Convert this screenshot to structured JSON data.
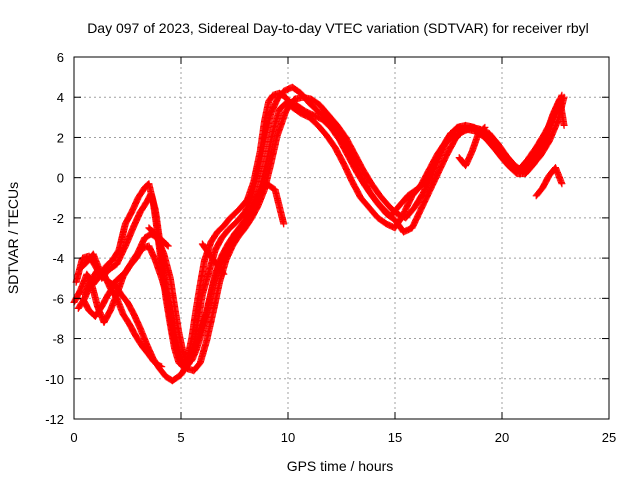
{
  "chart_data": {
    "type": "scatter",
    "title": "Day 097 of 2023, Sidereal Day-to-day VTEC variation (SDTVAR) for receiver rbyl",
    "xlabel": "GPS time / hours",
    "ylabel": "SDTVAR / TECUs",
    "xlim": [
      0,
      25
    ],
    "ylim": [
      -12,
      6
    ],
    "xticks": [
      0,
      5,
      10,
      15,
      20,
      25
    ],
    "yticks": [
      -12,
      -10,
      -8,
      -6,
      -4,
      -2,
      0,
      2,
      4,
      6
    ],
    "xtick_labels": [
      "0",
      "5",
      "10",
      "15",
      "20",
      "25"
    ],
    "ytick_labels": [
      "-12",
      "-10",
      "-8",
      "-6",
      "-4",
      "-2",
      "0",
      "2",
      "4",
      "6"
    ],
    "grid": true,
    "legend": "none",
    "marker": "plus",
    "color": "#ff0000",
    "series": [
      {
        "x": [
          0.0,
          0.3,
          0.6,
          0.9,
          1.2,
          1.5,
          1.8,
          2.1,
          2.4,
          2.7,
          3.0,
          3.3,
          3.5,
          3.7,
          3.9,
          4.1,
          4.3,
          4.5,
          4.7,
          4.9,
          5.1,
          5.3,
          5.5,
          5.7,
          5.9,
          6.1,
          6.4,
          6.7,
          7.0,
          7.3,
          7.7,
          8.1,
          8.4,
          8.7,
          8.9,
          9.1,
          9.3,
          9.6,
          9.9,
          10.2,
          10.6,
          11.0,
          11.4,
          11.8,
          12.2,
          12.6,
          13.0,
          13.4,
          13.8,
          14.2,
          14.6,
          15.0,
          15.4,
          15.8,
          16.2,
          16.6,
          17.0,
          17.4,
          17.8,
          18.2,
          18.6,
          19.0,
          19.4,
          19.8,
          20.2,
          20.6,
          21.0,
          21.4,
          21.8,
          22.1,
          22.4,
          22.7,
          22.9
        ],
        "y": [
          -6.2,
          -5.6,
          -4.8,
          -5.3,
          -4.9,
          -4.4,
          -4.1,
          -3.6,
          -2.3,
          -1.7,
          -1.0,
          -0.5,
          -0.3,
          -1.2,
          -2.7,
          -4.4,
          -6.0,
          -7.3,
          -8.5,
          -9.2,
          -9.4,
          -9.0,
          -8.0,
          -6.6,
          -5.3,
          -4.1,
          -3.2,
          -2.7,
          -2.4,
          -2.0,
          -1.6,
          -1.1,
          -0.2,
          1.3,
          2.8,
          3.8,
          4.1,
          4.2,
          4.0,
          3.5,
          3.2,
          3.0,
          2.6,
          2.1,
          1.5,
          0.7,
          -0.2,
          -1.0,
          -1.5,
          -2.0,
          -2.3,
          -2.5,
          -1.8,
          -0.9,
          -0.4,
          0.4,
          1.2,
          1.8,
          2.1,
          2.3,
          2.5,
          2.3,
          2.0,
          1.4,
          0.8,
          0.4,
          0.5,
          1.0,
          1.5,
          2.3,
          3.2,
          3.9,
          2.6
        ]
      },
      {
        "x": [
          0.1,
          0.4,
          0.7,
          1.0,
          1.3,
          1.6,
          2.0,
          2.4,
          2.8,
          3.1,
          3.4,
          3.6,
          3.8,
          4.0,
          4.2,
          4.4,
          4.6,
          4.8,
          5.0,
          5.2,
          5.4,
          5.6,
          5.8,
          6.0,
          6.3,
          6.6,
          6.9,
          7.2,
          7.6,
          8.0,
          8.3,
          8.6,
          8.9,
          9.2,
          9.5,
          9.8,
          10.2,
          10.6,
          11.0,
          11.4,
          11.8,
          12.2,
          12.6,
          13.0,
          13.4,
          13.8,
          14.2,
          14.6,
          15.0,
          15.4,
          15.8,
          16.2,
          16.6,
          17.0,
          17.4,
          17.8,
          18.2,
          18.6,
          19.0,
          19.4,
          19.8,
          20.2,
          20.6,
          21.0,
          21.4,
          21.8,
          22.2,
          22.6,
          22.9
        ],
        "y": [
          -5.2,
          -4.0,
          -3.9,
          -4.4,
          -5.0,
          -4.6,
          -4.3,
          -3.4,
          -2.4,
          -1.7,
          -1.2,
          -0.8,
          -1.6,
          -3.1,
          -4.8,
          -6.3,
          -7.6,
          -8.6,
          -9.2,
          -9.5,
          -9.2,
          -8.3,
          -7.1,
          -5.8,
          -4.7,
          -3.6,
          -3.0,
          -2.6,
          -2.2,
          -1.7,
          -1.0,
          0.3,
          1.8,
          3.2,
          3.9,
          4.3,
          4.5,
          4.2,
          3.7,
          3.3,
          3.0,
          2.5,
          1.8,
          1.0,
          0.1,
          -0.7,
          -1.3,
          -1.8,
          -2.1,
          -2.7,
          -2.5,
          -1.6,
          -0.7,
          0.2,
          1.1,
          1.9,
          2.4,
          2.5,
          2.4,
          2.2,
          1.7,
          1.1,
          0.6,
          0.3,
          0.6,
          1.1,
          1.8,
          2.8,
          4.0
        ]
      },
      {
        "x": [
          0.2,
          0.5,
          0.8,
          1.1,
          1.4,
          1.7,
          2.0,
          2.3,
          2.6,
          2.9,
          3.2,
          3.5,
          3.8,
          4.1,
          4.4,
          4.6,
          4.8,
          5.0,
          5.3,
          5.6,
          5.9,
          6.2,
          6.5,
          6.8,
          7.1,
          7.4,
          7.7,
          8.0,
          8.3,
          8.6,
          8.9,
          9.2,
          9.5,
          9.9,
          10.3,
          10.7,
          11.1,
          11.5,
          11.9,
          12.3,
          12.7,
          13.1,
          13.5,
          13.9,
          14.3,
          14.7,
          15.1,
          15.5,
          15.9,
          16.3,
          16.7,
          17.1,
          17.5,
          17.9,
          18.3,
          18.7,
          19.1,
          19.5,
          19.9,
          20.3,
          20.7,
          21.1,
          21.5,
          21.9,
          22.3,
          22.7
        ],
        "y": [
          -6.5,
          -6.0,
          -5.2,
          -6.4,
          -7.2,
          -6.6,
          -5.8,
          -4.9,
          -4.4,
          -4.0,
          -3.5,
          -3.4,
          -4.1,
          -5.0,
          -6.1,
          -7.2,
          -8.2,
          -9.0,
          -9.5,
          -9.6,
          -9.2,
          -8.1,
          -6.7,
          -5.2,
          -4.1,
          -3.4,
          -2.9,
          -2.5,
          -2.0,
          -1.4,
          -0.6,
          0.7,
          2.1,
          3.3,
          3.9,
          4.0,
          3.9,
          3.6,
          3.1,
          2.6,
          2.0,
          1.2,
          0.4,
          -0.3,
          -0.9,
          -1.4,
          -1.8,
          -2.0,
          -1.5,
          -0.8,
          0.1,
          1.1,
          2.0,
          2.5,
          2.6,
          2.5,
          2.2,
          1.7,
          1.1,
          0.6,
          0.2,
          0.2,
          0.7,
          1.6,
          2.8,
          3.8
        ]
      },
      {
        "x": [
          0.3,
          0.6,
          0.9,
          1.2,
          1.5,
          1.8,
          2.1,
          2.4,
          2.7,
          3.0,
          3.3,
          3.6,
          3.9,
          4.2,
          4.5,
          4.7,
          4.9,
          5.1,
          5.3,
          5.5,
          5.7,
          6.0,
          6.3,
          6.6,
          6.9,
          7.2,
          7.5,
          7.8,
          8.1,
          8.4,
          8.7,
          9.0,
          9.3,
          9.6,
          10.0,
          10.4,
          10.8,
          11.2,
          11.6,
          12.0,
          12.4,
          12.8,
          13.2,
          13.6,
          14.0,
          14.4,
          14.8,
          15.2,
          15.6,
          16.0,
          16.4,
          16.8,
          17.2,
          17.6,
          18.0,
          18.4,
          18.8,
          19.2,
          19.6,
          20.0,
          20.4,
          20.8,
          21.2,
          21.6,
          22.0,
          22.4,
          22.8
        ],
        "y": [
          -4.5,
          -4.2,
          -3.8,
          -4.6,
          -5.1,
          -5.3,
          -5.0,
          -4.7,
          -4.2,
          -3.7,
          -3.0,
          -2.8,
          -3.0,
          -3.8,
          -5.0,
          -6.4,
          -7.7,
          -8.7,
          -9.2,
          -9.1,
          -8.6,
          -7.6,
          -6.2,
          -4.8,
          -3.9,
          -3.3,
          -2.8,
          -2.4,
          -1.9,
          -1.3,
          -0.5,
          0.8,
          2.3,
          3.4,
          3.8,
          3.6,
          3.3,
          3.1,
          2.9,
          2.5,
          1.9,
          1.1,
          0.3,
          -0.4,
          -1.0,
          -1.5,
          -1.9,
          -1.4,
          -0.9,
          -0.6,
          -0.2,
          0.6,
          1.5,
          2.2,
          2.5,
          2.4,
          2.3,
          2.0,
          1.5,
          1.0,
          0.5,
          0.4,
          0.9,
          1.5,
          2.2,
          3.0,
          4.1
        ]
      },
      {
        "x": [
          0.4,
          0.7,
          1.0,
          1.3,
          1.6,
          1.9,
          2.2,
          2.5,
          2.8,
          3.1,
          3.4,
          3.7,
          4.0,
          4.3,
          4.6,
          5.0,
          5.4,
          5.8,
          6.2,
          6.5,
          6.8,
          7.1,
          7.4,
          7.8,
          8.2,
          8.6,
          9.0,
          9.4,
          9.8
        ],
        "y": [
          -6.0,
          -6.6,
          -6.9,
          -6.4,
          -5.8,
          -5.3,
          -5.8,
          -6.2,
          -6.8,
          -7.5,
          -8.3,
          -9.0,
          -9.5,
          -9.9,
          -10.1,
          -9.8,
          -9.1,
          -8.0,
          -6.7,
          -5.3,
          -4.3,
          -3.6,
          -3.2,
          -2.6,
          -1.9,
          -0.9,
          -0.3,
          -0.6,
          -2.3
        ]
      },
      {
        "x": [
          0.5,
          0.8,
          1.1,
          1.4,
          1.7,
          2.0,
          2.3,
          2.6,
          2.9,
          3.2,
          3.5,
          3.7,
          3.9,
          4.1
        ],
        "y": [
          -5.8,
          -5.1,
          -4.6,
          -4.8,
          -5.5,
          -6.0,
          -6.8,
          -7.3,
          -7.9,
          -8.4,
          -8.8,
          -9.1,
          -9.3,
          -9.4
        ]
      },
      {
        "x": [
          6.0,
          6.2,
          6.4,
          6.6,
          6.8,
          7.0
        ],
        "y": [
          -3.3,
          -3.6,
          -3.9,
          -4.2,
          -4.5,
          -4.8
        ]
      },
      {
        "x": [
          3.5,
          3.8,
          4.1,
          4.4
        ],
        "y": [
          -2.5,
          -2.8,
          -3.1,
          -3.4
        ]
      },
      {
        "x": [
          18.0,
          18.3,
          18.6,
          18.9,
          19.2
        ],
        "y": [
          1.0,
          0.6,
          1.3,
          2.2,
          2.5
        ]
      },
      {
        "x": [
          21.6,
          21.9,
          22.2,
          22.5,
          22.8
        ],
        "y": [
          -0.9,
          -0.5,
          0.1,
          0.5,
          -0.3
        ]
      }
    ]
  }
}
